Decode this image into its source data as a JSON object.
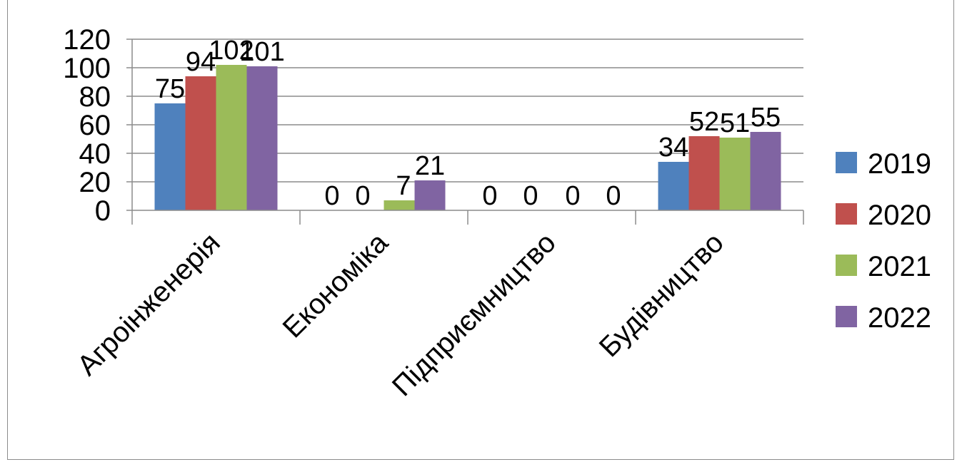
{
  "chart_data": {
    "type": "bar",
    "title": "",
    "xlabel": "",
    "ylabel": "",
    "ylim": [
      0,
      120
    ],
    "yticks": [
      0,
      20,
      40,
      60,
      80,
      100,
      120
    ],
    "grid": true,
    "legend_position": "right",
    "categories": [
      "Агроінженерія",
      "Економіка",
      "Підприємництво",
      "Будівництво"
    ],
    "series": [
      {
        "name": "2019",
        "color": "#4f81bd",
        "values": [
          75,
          0,
          0,
          34
        ]
      },
      {
        "name": "2020",
        "color": "#c0504d",
        "values": [
          94,
          0,
          0,
          52
        ]
      },
      {
        "name": "2021",
        "color": "#9bbb59",
        "values": [
          102,
          7,
          0,
          51
        ]
      },
      {
        "name": "2022",
        "color": "#8064a2",
        "values": [
          101,
          21,
          0,
          55
        ]
      }
    ]
  }
}
